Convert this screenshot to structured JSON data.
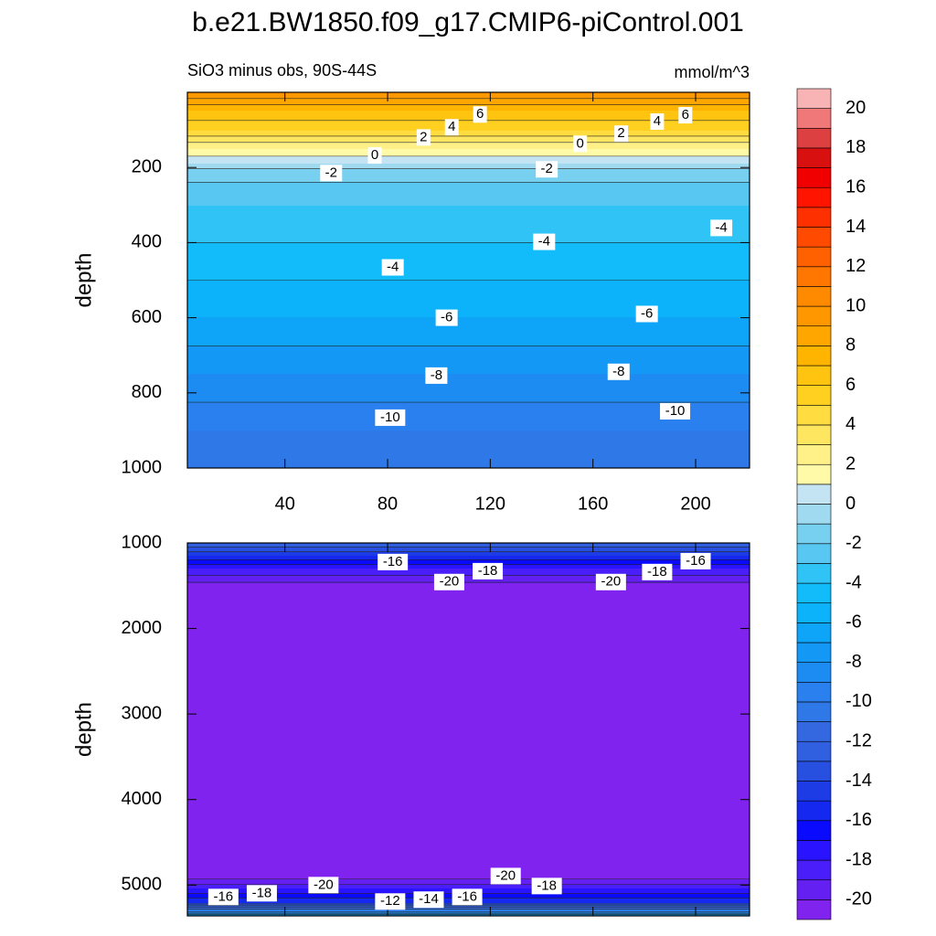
{
  "chart_data": {
    "type": "contour",
    "title": "b.e21.BW1850.f09_g17.CMIP6-piControl.001",
    "subtitle": "SiO3 minus obs, 90S-44S",
    "units": "mmol/m^3",
    "colorbar": {
      "levels": [
        -20,
        -19,
        -18,
        -17,
        -16,
        -15,
        -14,
        -13,
        -12,
        -11,
        -10,
        -9,
        -8,
        -7,
        -6,
        -5,
        -4,
        -3,
        -2,
        -1,
        0,
        1,
        2,
        3,
        4,
        5,
        6,
        7,
        8,
        9,
        10,
        11,
        12,
        13,
        14,
        15,
        16,
        17,
        18,
        19,
        20
      ],
      "ticks": [
        -20,
        -18,
        -16,
        -14,
        -12,
        -10,
        -8,
        -6,
        -4,
        -2,
        0,
        2,
        4,
        6,
        8,
        10,
        12,
        14,
        16,
        18,
        20
      ],
      "colors": [
        "#8023ee",
        "#6420f0",
        "#4a1ef8",
        "#2a14ff",
        "#0a0aff",
        "#1428f0",
        "#1e3ce6",
        "#2850e0",
        "#3060e0",
        "#3468e0",
        "#2f78e8",
        "#2a80ee",
        "#1c8cf2",
        "#1398f6",
        "#0ea4f8",
        "#0cb2fa",
        "#12bcfa",
        "#30c4f6",
        "#58c8f2",
        "#78d0f0",
        "#a0daf0",
        "#c4e4f4",
        "#fffaa8",
        "#fff088",
        "#ffe660",
        "#ffdc40",
        "#ffd020",
        "#ffc410",
        "#ffb400",
        "#ffa600",
        "#ff9800",
        "#ff8a00",
        "#ff7600",
        "#ff6000",
        "#ff4a00",
        "#ff3000",
        "#ff1400",
        "#f00000",
        "#d81010",
        "#dc4040",
        "#f07878",
        "#f8b4b4"
      ]
    },
    "panels": [
      {
        "ylabel": "depth",
        "xlim": [
          2,
          221
        ],
        "ylim": [
          0,
          1000
        ],
        "xticks": [
          40,
          80,
          120,
          160,
          200
        ],
        "yticks": [
          200,
          400,
          600,
          800,
          1000
        ],
        "show_xtick_labels": true,
        "profile": {
          "depth": [
            0,
            50,
            100,
            150,
            190,
            210,
            300,
            450,
            600,
            750,
            900,
            1000
          ],
          "value": [
            10,
            7,
            5,
            2,
            0,
            -1.5,
            -3,
            -4.5,
            -6,
            -8,
            -10,
            -11
          ]
        },
        "contour_labels": [
          {
            "x": 116,
            "y": 59,
            "value": 6
          },
          {
            "x": 105,
            "y": 93,
            "value": 4
          },
          {
            "x": 94,
            "y": 120,
            "value": 2
          },
          {
            "x": 75,
            "y": 168,
            "value": 0
          },
          {
            "x": 58,
            "y": 215,
            "value": -2
          },
          {
            "x": 196,
            "y": 61,
            "value": 6
          },
          {
            "x": 185,
            "y": 78,
            "value": 4
          },
          {
            "x": 171,
            "y": 110,
            "value": 2
          },
          {
            "x": 155,
            "y": 137,
            "value": 0
          },
          {
            "x": 142,
            "y": 205,
            "value": -2
          },
          {
            "x": 210,
            "y": 361,
            "value": -4
          },
          {
            "x": 141,
            "y": 398,
            "value": -4
          },
          {
            "x": 82,
            "y": 466,
            "value": -4
          },
          {
            "x": 103,
            "y": 600,
            "value": -6
          },
          {
            "x": 181,
            "y": 590,
            "value": -6
          },
          {
            "x": 99,
            "y": 754,
            "value": -8
          },
          {
            "x": 170,
            "y": 744,
            "value": -8
          },
          {
            "x": 81,
            "y": 866,
            "value": -10
          },
          {
            "x": 192,
            "y": 849,
            "value": -10
          }
        ]
      },
      {
        "ylabel": "depth",
        "xlim": [
          2,
          221
        ],
        "ylim": [
          1000,
          5360
        ],
        "xticks": [
          40,
          80,
          120,
          160,
          200
        ],
        "yticks": [
          1000,
          2000,
          3000,
          4000,
          5000
        ],
        "show_xtick_labels": false,
        "profile": {
          "depth": [
            1000,
            1150,
            1300,
            1500,
            4900,
            5050,
            5200,
            5300,
            5360
          ],
          "value": [
            -12,
            -15,
            -18,
            -20.5,
            -20.5,
            -18,
            -15,
            -10,
            -6
          ]
        },
        "contour_labels": [
          {
            "x": 82,
            "y": 1223,
            "value": -16
          },
          {
            "x": 119,
            "y": 1330,
            "value": -18
          },
          {
            "x": 104,
            "y": 1457,
            "value": -20
          },
          {
            "x": 167,
            "y": 1457,
            "value": -20
          },
          {
            "x": 185,
            "y": 1340,
            "value": -18
          },
          {
            "x": 200,
            "y": 1213,
            "value": -16
          },
          {
            "x": 55,
            "y": 5000,
            "value": -20
          },
          {
            "x": 16,
            "y": 5139,
            "value": -16
          },
          {
            "x": 31,
            "y": 5096,
            "value": -18
          },
          {
            "x": 81,
            "y": 5192,
            "value": -12
          },
          {
            "x": 96,
            "y": 5170,
            "value": -14
          },
          {
            "x": 111,
            "y": 5139,
            "value": -16
          },
          {
            "x": 126,
            "y": 4894,
            "value": -20
          },
          {
            "x": 142,
            "y": 5011,
            "value": -18
          }
        ]
      }
    ]
  }
}
